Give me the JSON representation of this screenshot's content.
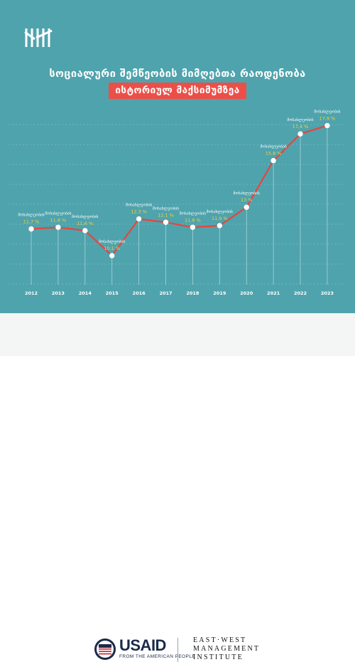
{
  "title_line1": "სოციალური შემწეობის მიმღებთა რაოდენობა",
  "title_line2": "ისტორიულ მაქსიმუმზეა",
  "chart_data": {
    "type": "line",
    "x": [
      "2012",
      "2013",
      "2014",
      "2015",
      "2016",
      "2017",
      "2018",
      "2019",
      "2020",
      "2021",
      "2022",
      "2023"
    ],
    "series": [
      {
        "values": [
          11.7,
          11.8,
          11.6,
          10.1,
          12.3,
          12.1,
          11.8,
          11.9,
          13,
          15.8,
          17.4,
          17.9
        ],
        "value_labels": [
          "11,7 %",
          "11,8 %",
          "11,6 %",
          "10,1 %",
          "12,3 %",
          "12,1 %",
          "11,8 %",
          "11,9 %",
          "13 %",
          "15,8 %",
          "17,4 %",
          "17,9 %"
        ],
        "point_label": "მოსახლეობის"
      }
    ],
    "ylim": [
      7.5,
      18.6
    ],
    "grid": true,
    "colors": {
      "line": "#e8453c",
      "marker": "#ffffff",
      "value_label": "#f2d33a",
      "point_label": "#ffffff",
      "grid": "#7fbcc4"
    }
  },
  "footer": {
    "usaid_label": "USAID",
    "usaid_tagline": "FROM THE AMERICAN PEOPLE",
    "ewmi_lines": [
      "EAST·WEST",
      "MANAGEMENT",
      "INSTITUTE"
    ]
  }
}
